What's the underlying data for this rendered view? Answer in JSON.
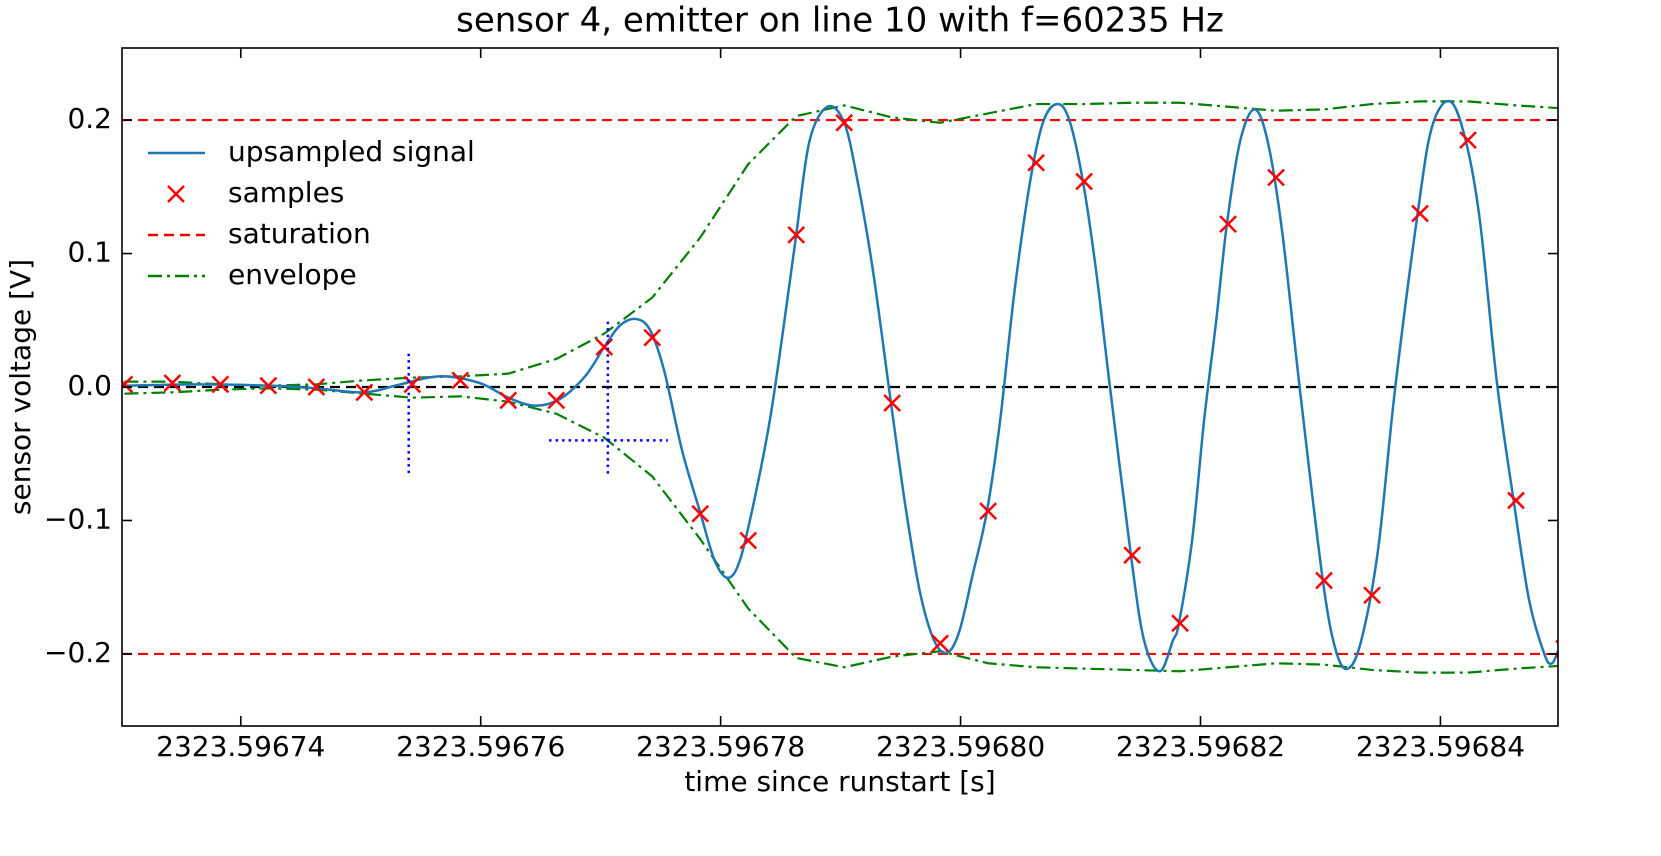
{
  "chart_data": {
    "type": "line",
    "title": "sensor 4, emitter on line 10 with f=60235 Hz",
    "xlabel": "time since runstart [s]",
    "ylabel": "sensor voltage [V]",
    "xlim": [
      2323.5967301,
      2323.5968498
    ],
    "ylim": [
      -0.254,
      0.254
    ],
    "xticks": [
      2323.59674,
      2323.59676,
      2323.59678,
      {
        "value": 2323.5968,
        "label": "2323.59680"
      },
      2323.59682,
      2323.59684
    ],
    "yticks": [
      {
        "value": -0.2,
        "label": "−0.2"
      },
      {
        "value": -0.1,
        "label": "−0.1"
      },
      {
        "value": 0,
        "label": "0.0"
      },
      0.1,
      0.2
    ],
    "legend": "upper left",
    "series": [
      {
        "name": "upsampled signal",
        "style": "line",
        "color": "#1f77b4",
        "x": [
          2323.5967303,
          2323.5967366,
          2323.5967423,
          2323.5967463,
          2323.5967503,
          2323.5967533,
          2323.5967566,
          2323.5967599,
          2323.5967623,
          2323.5967645,
          2323.5967666,
          2323.5967687,
          2323.5967703,
          2323.5967716,
          2323.5967729,
          2323.5967741,
          2323.5967753,
          2323.5967768,
          2323.5967783,
          2323.5967795,
          2323.5967806,
          2323.5967816,
          2323.5967828,
          2323.5967841,
          2323.5967852,
          2323.5967863,
          2323.5967874,
          2323.5967889,
          2323.5967903,
          2323.5967914,
          2323.5967927,
          2323.5967942,
          2323.5967954,
          2323.5967966,
          2323.5967978,
          2323.5967989,
          2323.5967999,
          2323.596801,
          2323.5968022,
          2323.5968033,
          2323.5968045,
          2323.5968058,
          2323.5968069,
          2323.5968081,
          2323.5968091,
          2323.5968102,
          2323.5968113,
          2323.5968124,
          2323.5968142,
          2323.5968153,
          2323.5968166,
          2323.5968177,
          2323.5968182,
          2323.5968193,
          2323.5968203,
          2323.5968213,
          2323.5968222,
          2323.5968233,
          2323.5968245,
          2323.5968256,
          2323.5968268,
          2323.5968283,
          2323.5968302,
          2323.5968313,
          2323.5968323,
          2323.5968334,
          2323.5968348,
          2323.5968362,
          2323.5968381,
          2323.5968393,
          2323.5968408,
          2323.5968421,
          2323.5968433,
          2323.5968447,
          2323.5968461,
          2323.5968474,
          2323.5968487,
          2323.5968493,
          2323.5968498
        ],
        "values": [
          0.001,
          0.002,
          0.001,
          -0.001,
          -0.004,
          0.002,
          0.008,
          0.003,
          -0.008,
          -0.014,
          -0.009,
          0.008,
          0.03,
          0.046,
          0.051,
          0.043,
          0.012,
          -0.048,
          -0.094,
          -0.13,
          -0.143,
          -0.13,
          -0.085,
          -0.025,
          0.042,
          0.114,
          0.184,
          0.21,
          0.198,
          0.155,
          0.087,
          -0.012,
          -0.089,
          -0.153,
          -0.19,
          -0.199,
          -0.183,
          -0.141,
          -0.093,
          -0.025,
          0.072,
          0.154,
          0.199,
          0.212,
          0.199,
          0.154,
          0.087,
          0.004,
          -0.126,
          -0.19,
          -0.213,
          -0.19,
          -0.177,
          -0.115,
          -0.025,
          0.049,
          0.122,
          0.184,
          0.208,
          0.184,
          0.117,
          -0.003,
          -0.145,
          -0.198,
          -0.211,
          -0.19,
          -0.122,
          -0.003,
          0.13,
          0.195,
          0.214,
          0.185,
          0.124,
          0.004,
          -0.085,
          -0.16,
          -0.201,
          -0.207,
          -0.198
        ]
      },
      {
        "name": "samples",
        "style": "x-marker",
        "color": "#ff0000",
        "x": [
          2323.5967303,
          2323.5967343,
          2323.5967383,
          2323.5967423,
          2323.5967463,
          2323.5967503,
          2323.5967543,
          2323.5967583,
          2323.5967623,
          2323.5967663,
          2323.5967703,
          2323.5967743,
          2323.5967783,
          2323.5967823,
          2323.5967863,
          2323.5967903,
          2323.5967943,
          2323.5967983,
          2323.5968023,
          2323.5968063,
          2323.5968103,
          2323.5968143,
          2323.5968183,
          2323.5968223,
          2323.5968263,
          2323.5968303,
          2323.5968343,
          2323.5968383,
          2323.5968423,
          2323.5968463,
          2323.5968503
        ],
        "values": [
          0.002,
          0.003,
          0.002,
          0.001,
          0,
          -0.004,
          0.002,
          0.005,
          -0.01,
          -0.01,
          0.03,
          0.037,
          -0.095,
          -0.115,
          0.114,
          0.198,
          -0.012,
          -0.192,
          -0.093,
          0.168,
          0.154,
          -0.126,
          -0.177,
          0.122,
          0.157,
          -0.145,
          -0.156,
          0.13,
          0.185,
          -0.085,
          -0.196
        ]
      },
      {
        "name": "saturation",
        "style": "hline",
        "color": "#ff0000",
        "values": [
          0.2,
          -0.2
        ]
      },
      {
        "name": "envelope",
        "style": "dashdot",
        "color": "#008000",
        "x": [
          2323.5967303,
          2323.5967343,
          2323.5967383,
          2323.5967423,
          2323.5967463,
          2323.5967503,
          2323.5967543,
          2323.5967583,
          2323.5967623,
          2323.5967663,
          2323.5967703,
          2323.5967743,
          2323.5967783,
          2323.5967823,
          2323.5967863,
          2323.5967903,
          2323.5967943,
          2323.5967983,
          2323.5968023,
          2323.5968063,
          2323.5968103,
          2323.5968143,
          2323.5968183,
          2323.5968223,
          2323.5968263,
          2323.5968303,
          2323.5968343,
          2323.5968383,
          2323.5968423,
          2323.5968463,
          2323.5968498
        ],
        "values": [
          0.004,
          0.004,
          0.002,
          0.001,
          0.002,
          0.005,
          0.007,
          0.008,
          0.01,
          0.021,
          0.04,
          0.067,
          0.112,
          0.167,
          0.203,
          0.211,
          0.202,
          0.198,
          0.205,
          0.212,
          0.212,
          0.213,
          0.213,
          0.21,
          0.207,
          0.208,
          0.212,
          0.214,
          0.214,
          0.211,
          0.209
        ]
      },
      {
        "style": "dashdot",
        "color": "#008000",
        "x": [
          2323.5967303,
          2323.5967343,
          2323.5967383,
          2323.5967423,
          2323.5967463,
          2323.5967503,
          2323.5967543,
          2323.5967583,
          2323.5967623,
          2323.5967663,
          2323.5967703,
          2323.5967743,
          2323.5967783,
          2323.5967823,
          2323.5967863,
          2323.5967903,
          2323.5967943,
          2323.5967983,
          2323.5968023,
          2323.5968063,
          2323.5968103,
          2323.5968143,
          2323.5968183,
          2323.5968223,
          2323.5968263,
          2323.5968303,
          2323.5968343,
          2323.5968383,
          2323.5968423,
          2323.5968463,
          2323.5968498
        ],
        "values": [
          -0.005,
          -0.004,
          -0.002,
          -0.001,
          -0.002,
          -0.005,
          -0.008,
          -0.007,
          -0.011,
          -0.02,
          -0.038,
          -0.067,
          -0.114,
          -0.166,
          -0.203,
          -0.21,
          -0.202,
          -0.198,
          -0.207,
          -0.21,
          -0.211,
          -0.212,
          -0.213,
          -0.21,
          -0.207,
          -0.208,
          -0.212,
          -0.214,
          -0.214,
          -0.211,
          -0.209
        ]
      },
      {
        "style": "hline",
        "color": "#000000",
        "values": [
          0
        ]
      }
    ],
    "crosshairs": {
      "color": "#0000ff",
      "segments": [
        {
          "x": [
            2323.596754,
            2323.596754
          ],
          "y": [
            0.025,
            -0.065
          ]
        },
        {
          "x": [
            2323.5967706,
            2323.5967706
          ],
          "y": [
            0.049,
            -0.065
          ]
        },
        {
          "x": [
            2323.5967657,
            2323.5967756
          ],
          "y": [
            -0.04,
            -0.04
          ]
        }
      ]
    }
  }
}
